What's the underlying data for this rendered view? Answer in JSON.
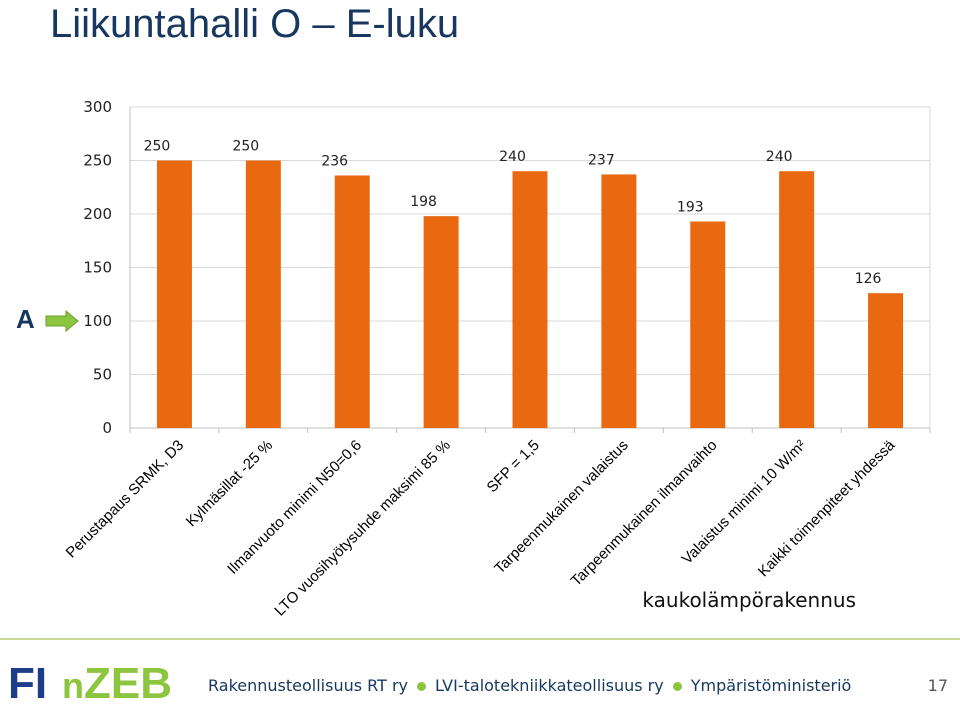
{
  "page": {
    "title": "Liikuntahalli O – E-luku",
    "subtitle": "kaukolämpörakennus",
    "marker_label": "A",
    "footer": {
      "logo_text": "FInZEB",
      "orgs": [
        "Rakennusteollisuus RT ry",
        "LVI-talotekniikkateollisuus ry",
        "Ympäristöministeriö"
      ],
      "page_number": "17"
    }
  },
  "colors": {
    "bar": "#e8690f",
    "title": "#17375e",
    "gridline": "#d9d9d9",
    "arrow": "#8cc63f",
    "logo_blue": "#1f3c88",
    "logo_green": "#8cc63f"
  },
  "icons": {
    "marker": "right-arrow-icon"
  },
  "chart_data": {
    "type": "bar",
    "title": "",
    "xlabel": "",
    "ylabel": "",
    "categories": [
      "Perustapaus SRMK, D3",
      "Kylmäsillat -25 %",
      "Ilmanvuoto minimi N50=0,6",
      "LTO vuosihyötysuhde maksimi 85 %",
      "SFP = 1,5",
      "Tarpeenmukainen valaistus",
      "Tarpeenmukainen ilmanvaihto",
      "Valaistus minimi 10 W/m²",
      "Kaikki toimenpiteet yhdessä"
    ],
    "values": [
      250,
      250,
      236,
      198,
      240,
      237,
      193,
      240,
      126
    ],
    "data_labels": [
      "250",
      "250",
      "236",
      "198",
      "240",
      "237",
      "193",
      "240",
      "126"
    ],
    "ylim": [
      0,
      300
    ],
    "yticks": [
      "0",
      "50",
      "100",
      "150",
      "200",
      "250",
      "300"
    ],
    "marker_value": 100,
    "grid": true,
    "legend": "none"
  }
}
